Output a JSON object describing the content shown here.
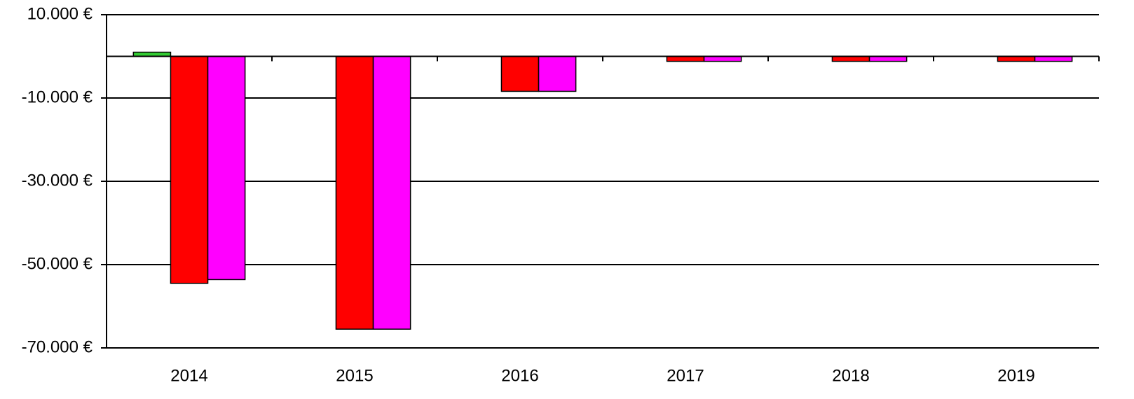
{
  "chart_data": {
    "type": "bar",
    "categories": [
      "2014",
      "2015",
      "2016",
      "2017",
      "2018",
      "2019"
    ],
    "series": [
      {
        "color": "#33cc33",
        "values": [
          1000,
          0,
          0,
          0,
          0,
          0
        ]
      },
      {
        "color": "#ff0000",
        "values": [
          -54500,
          -65500,
          -8400,
          -1200,
          -1200,
          -1200
        ]
      },
      {
        "color": "#ff00ff",
        "values": [
          -53600,
          -65500,
          -8400,
          -1200,
          -1200,
          -1200
        ]
      }
    ],
    "ylim": [
      -70000,
      10000
    ],
    "yticks": [
      {
        "value": 10000,
        "label": "10.000 €"
      },
      {
        "value": -10000,
        "label": "-10.000 €"
      },
      {
        "value": -30000,
        "label": "-30.000 €"
      },
      {
        "value": -50000,
        "label": "-50.000 €"
      },
      {
        "value": -70000,
        "label": "-70.000 €"
      }
    ],
    "grid": true
  }
}
